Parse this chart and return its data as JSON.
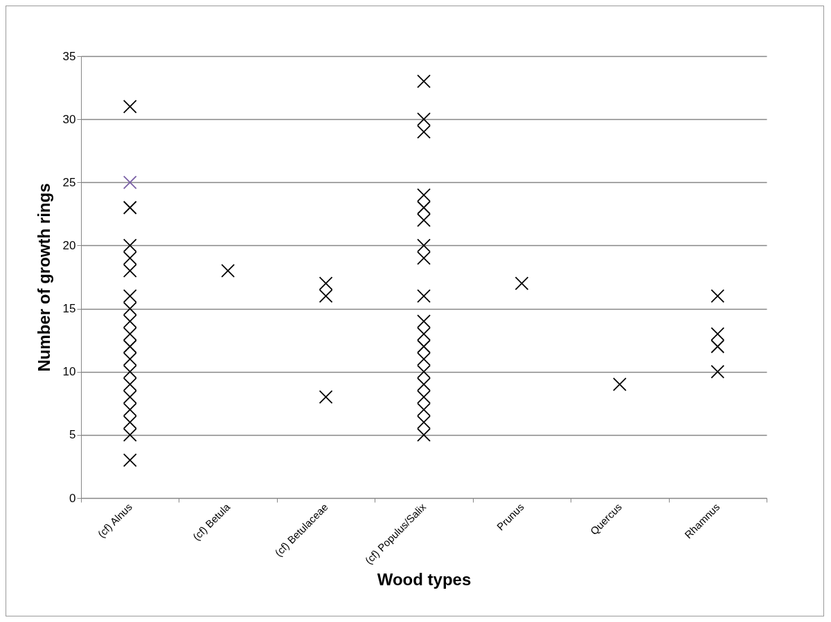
{
  "chart_data": {
    "type": "scatter",
    "xlabel": "Wood types",
    "ylabel": "Number of growth rings",
    "categories": [
      "(cf) Alnus",
      "(cf) Betula",
      "(cf) Betulaceae",
      "(cf) Populus/Salix",
      "Prunus",
      "Quercus",
      "Rhamnus"
    ],
    "series": [
      {
        "x": [
          "(cf) Alnus",
          "(cf) Alnus",
          "(cf) Alnus",
          "(cf) Alnus",
          "(cf) Alnus",
          "(cf) Alnus",
          "(cf) Alnus",
          "(cf) Alnus",
          "(cf) Alnus",
          "(cf) Alnus",
          "(cf) Alnus",
          "(cf) Alnus",
          "(cf) Alnus",
          "(cf) Alnus",
          "(cf) Alnus",
          "(cf) Alnus",
          "(cf) Alnus",
          "(cf) Alnus",
          "(cf) Alnus",
          "(cf) Betula",
          "(cf) Betulaceae",
          "(cf) Betulaceae",
          "(cf) Betulaceae",
          "(cf) Populus/Salix",
          "(cf) Populus/Salix",
          "(cf) Populus/Salix",
          "(cf) Populus/Salix",
          "(cf) Populus/Salix",
          "(cf) Populus/Salix",
          "(cf) Populus/Salix",
          "(cf) Populus/Salix",
          "(cf) Populus/Salix",
          "(cf) Populus/Salix",
          "(cf) Populus/Salix",
          "(cf) Populus/Salix",
          "(cf) Populus/Salix",
          "(cf) Populus/Salix",
          "(cf) Populus/Salix",
          "(cf) Populus/Salix",
          "(cf) Populus/Salix",
          "(cf) Populus/Salix",
          "(cf) Populus/Salix",
          "Prunus",
          "Quercus",
          "Rhamnus",
          "Rhamnus",
          "Rhamnus",
          "Rhamnus"
        ],
        "values": [
          31,
          25,
          23,
          20,
          19,
          18,
          16,
          15,
          14,
          13,
          12,
          11,
          10,
          9,
          8,
          7,
          6,
          5,
          3,
          18,
          17,
          16,
          8,
          33,
          30,
          29,
          24,
          23,
          22,
          20,
          19,
          16,
          14,
          13,
          12,
          11,
          10,
          9,
          8,
          7,
          6,
          5,
          17,
          9,
          16,
          13,
          12,
          10
        ],
        "colors": [
          "#000000",
          "#7b61a6",
          "#000000",
          "#000000",
          "#000000",
          "#000000",
          "#000000",
          "#000000",
          "#000000",
          "#000000",
          "#000000",
          "#000000",
          "#000000",
          "#000000",
          "#000000",
          "#000000",
          "#000000",
          "#000000",
          "#000000",
          "#000000",
          "#000000",
          "#000000",
          "#000000",
          "#000000",
          "#000000",
          "#000000",
          "#000000",
          "#000000",
          "#000000",
          "#000000",
          "#000000",
          "#000000",
          "#000000",
          "#000000",
          "#000000",
          "#000000",
          "#000000",
          "#000000",
          "#000000",
          "#000000",
          "#000000",
          "#000000",
          "#000000",
          "#000000",
          "#000000",
          "#000000",
          "#000000",
          "#000000"
        ]
      }
    ],
    "ylim": [
      0,
      35
    ],
    "yticks": [
      0,
      5,
      10,
      15,
      20,
      25,
      30,
      35
    ],
    "grid": "y",
    "marker": "cross"
  }
}
